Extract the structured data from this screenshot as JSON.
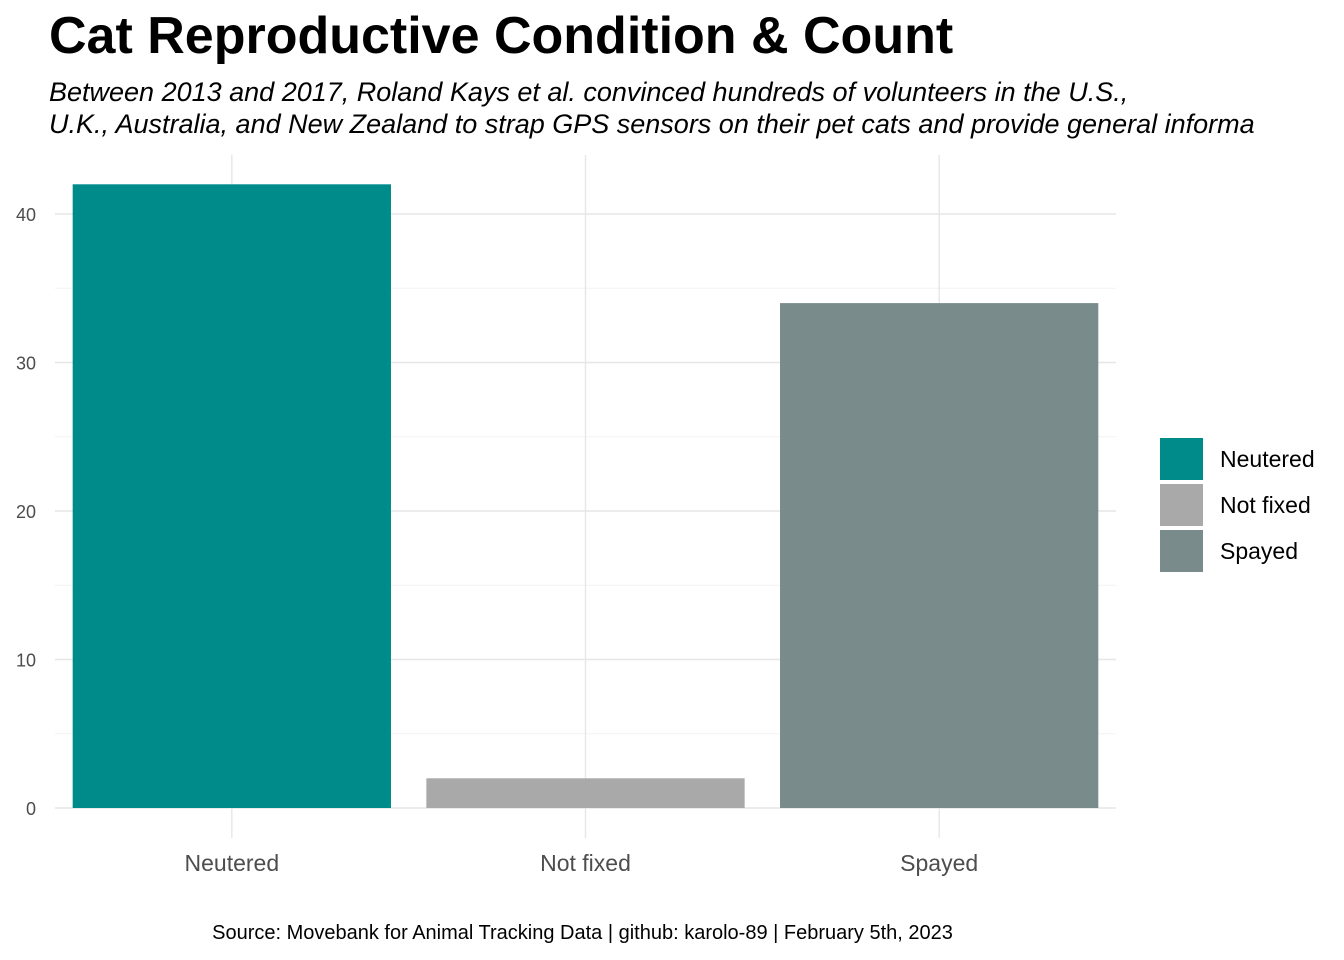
{
  "chart_data": {
    "type": "bar",
    "title": "Cat Reproductive Condition & Count",
    "subtitle_lines": [
      "Between 2013 and 2017, Roland Kays et al. convinced hundreds of volunteers in the U.S.,",
      "U.K., Australia, and New Zealand to strap GPS sensors on their pet cats and provide general informa"
    ],
    "categories": [
      "Neutered",
      "Not fixed",
      "Spayed"
    ],
    "values": [
      42,
      2,
      34
    ],
    "colors": [
      "#008B8B",
      "#A9A9A9",
      "#7A8B8B"
    ],
    "xlabel": "",
    "ylabel": "",
    "ylim": [
      0,
      42
    ],
    "yticks": [
      0,
      10,
      20,
      30,
      40
    ],
    "grid": true,
    "legend": {
      "position": "right",
      "entries": [
        "Neutered",
        "Not fixed",
        "Spayed"
      ]
    },
    "caption": "Source: Movebank for Animal Tracking Data | github: karolo-89 | February 5th, 2023"
  }
}
